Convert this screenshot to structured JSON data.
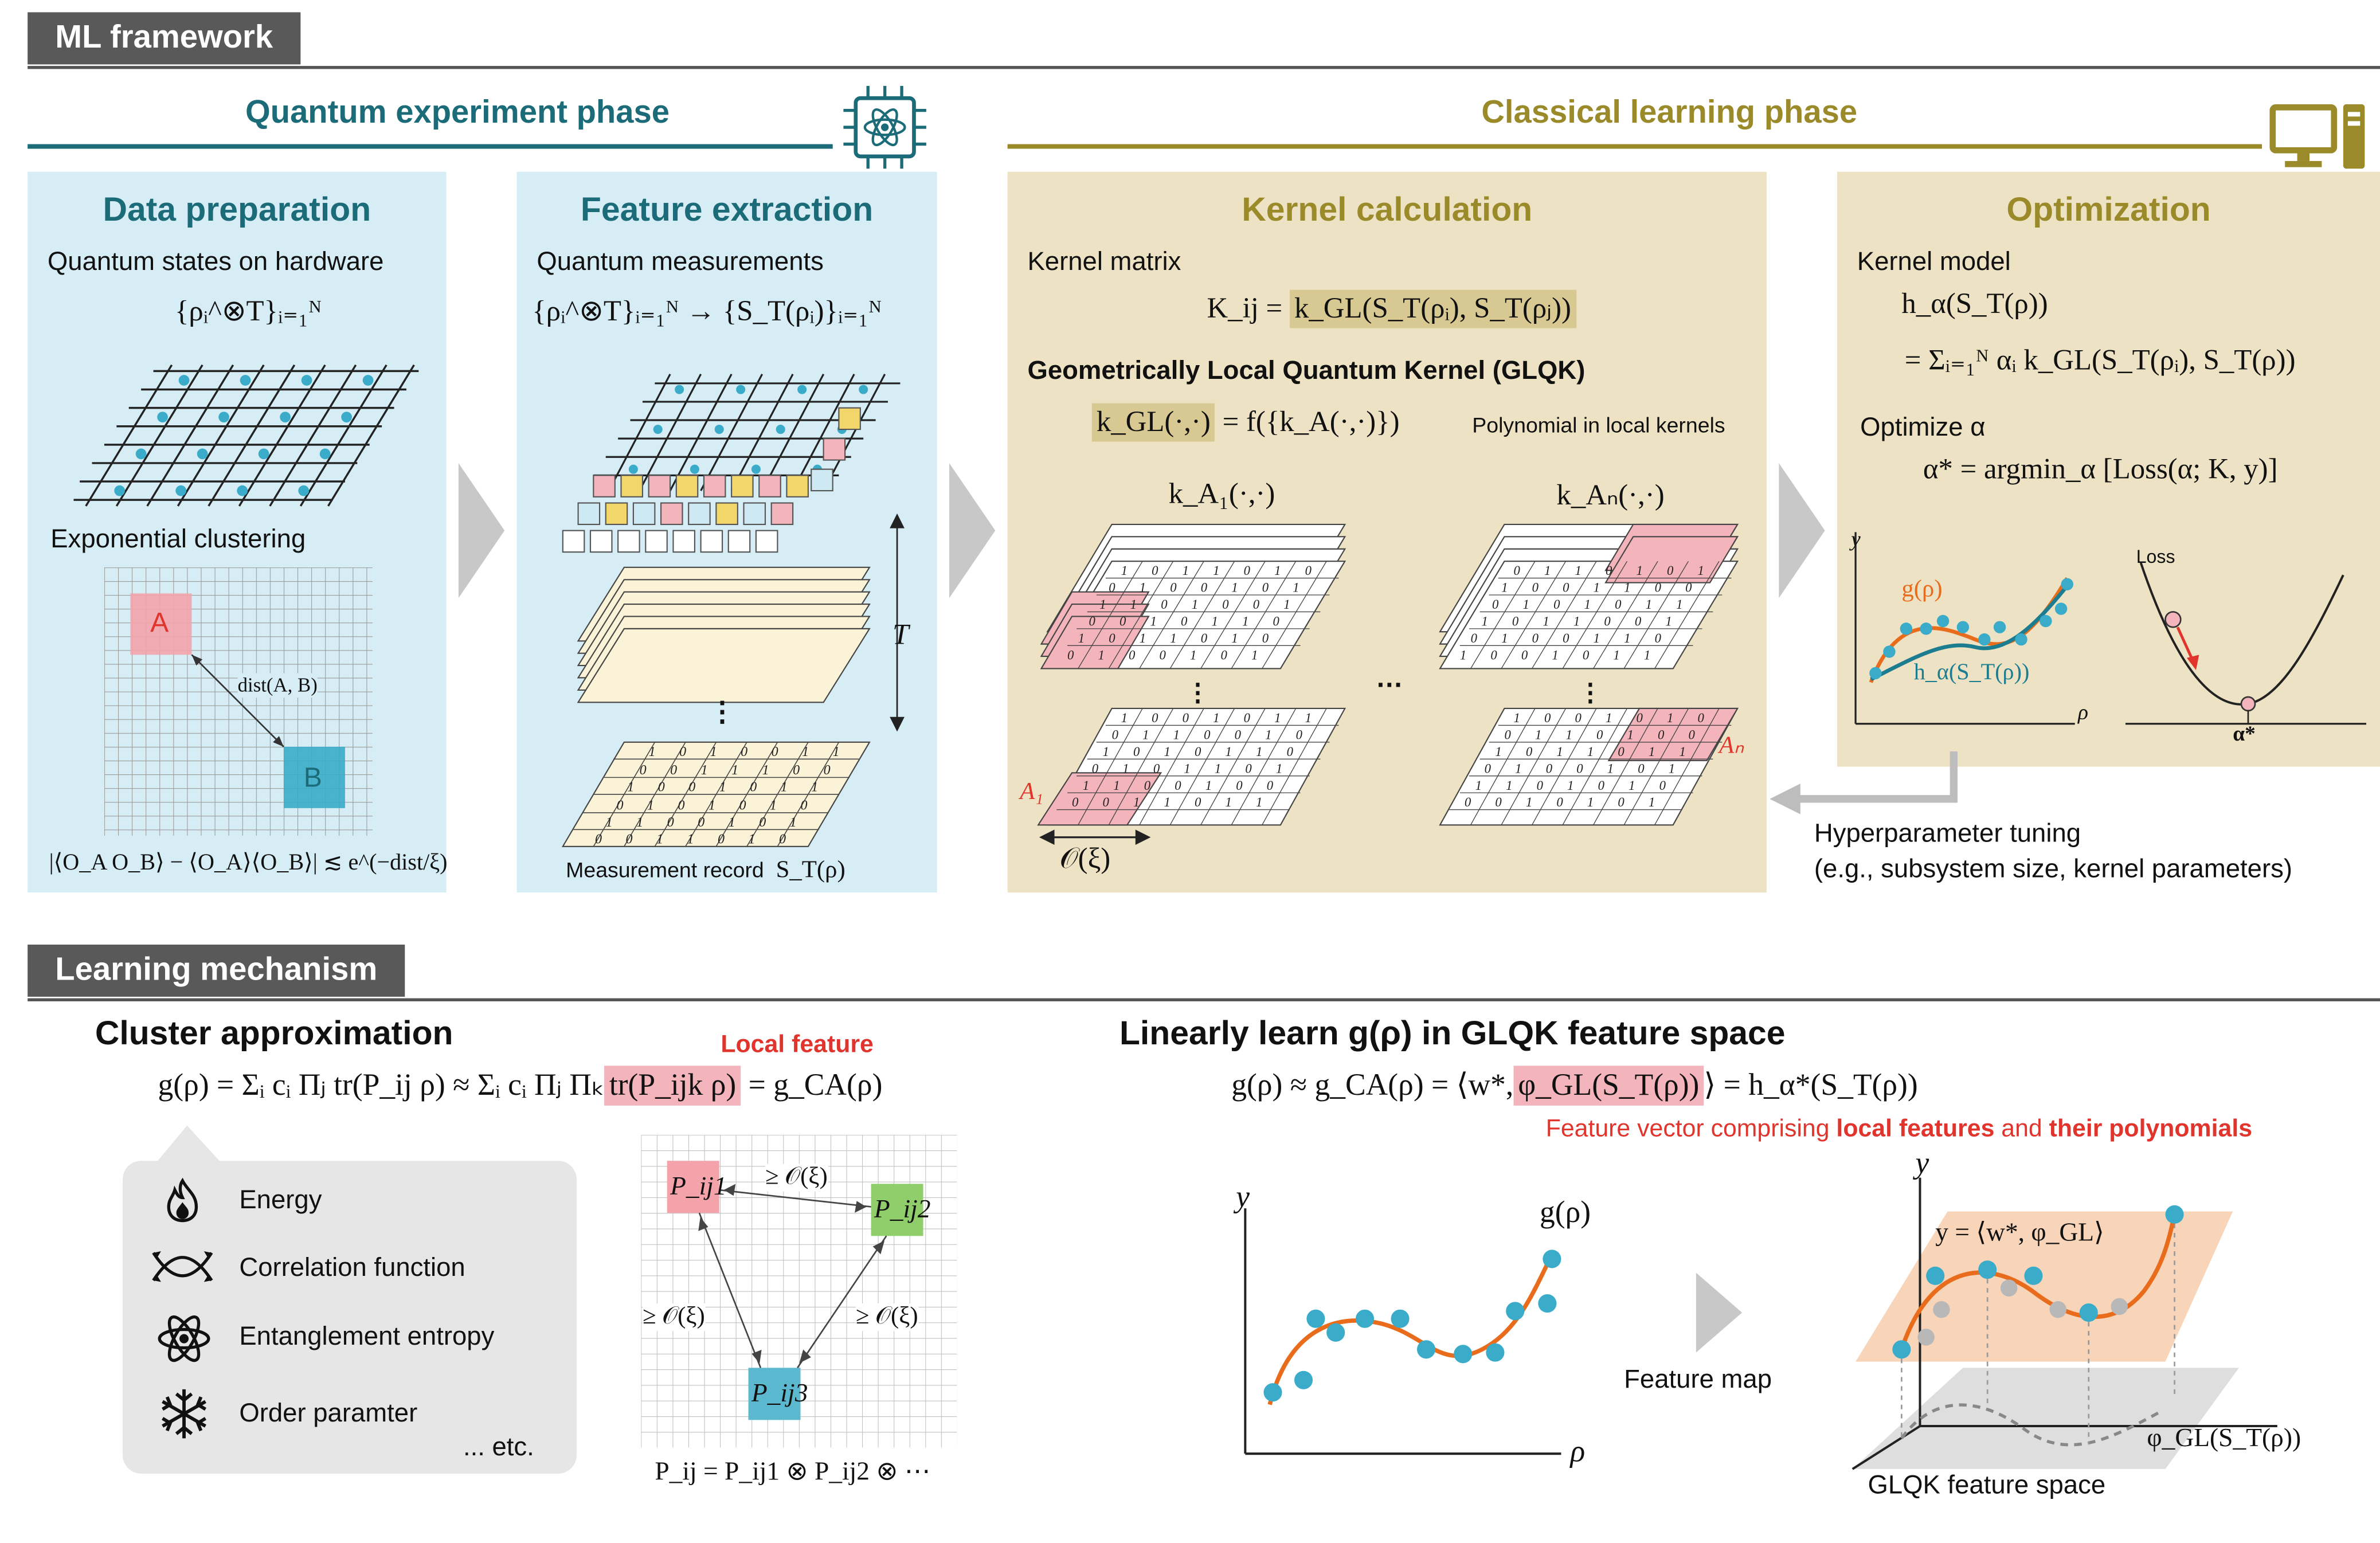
{
  "headers": {
    "ml_framework": "ML framework",
    "learning_mechanism": "Learning mechanism"
  },
  "phases": {
    "quantum": "Quantum experiment phase",
    "classical": "Classical learning phase"
  },
  "data_prep": {
    "title": "Data preparation",
    "subtitle": "Quantum states on hardware",
    "formula": "{ρᵢ^⊗T}ᵢ₌₁ᴺ",
    "clustering": "Exponential clustering",
    "box_a": "A",
    "box_b": "B",
    "dist": "dist(A, B)",
    "bound": "|⟨O_A O_B⟩ − ⟨O_A⟩⟨O_B⟩| ≲ e^(−dist/ξ)"
  },
  "feature": {
    "title": "Feature extraction",
    "subtitle": "Quantum measurements",
    "formula": "{ρᵢ^⊗T}ᵢ₌₁ᴺ → {S_T(ρᵢ)}ᵢ₌₁ᴺ",
    "t_label": "T",
    "record": "Measurement record",
    "record_math": "S_T(ρ)",
    "dots": "⋮"
  },
  "kernel": {
    "title": "Kernel calculation",
    "matrix_label": "Kernel matrix",
    "matrix_lhs": "K_ij =",
    "matrix_rhs": "k_GL(S_T(ρᵢ), S_T(ρⱼ))",
    "glqk_title": "Geometrically Local Quantum Kernel (GLQK)",
    "glqk_lhs": "k_GL(·,·)",
    "glqk_rhs": "= f({k_A(·,·)})",
    "glqk_note": "Polynomial in local kernels",
    "k1": "k_A₁(·,·)",
    "kn": "k_Aₙ(·,·)",
    "a1": "A₁",
    "an": "Aₙ",
    "xi": "𝒪(ξ)",
    "hdots": "…",
    "vdots": "⋮"
  },
  "optimization": {
    "title": "Optimization",
    "model_label": "Kernel model",
    "model_l1": "h_α(S_T(ρ))",
    "model_l2": "= Σᵢ₌₁ᴺ αᵢ k_GL(S_T(ρᵢ), S_T(ρ))",
    "opt_label": "Optimize α",
    "opt_formula": "α* = argmin_α [Loss(α; K, y)]",
    "g": "g(ρ)",
    "h": "h_α(S_T(ρ))",
    "y": "y",
    "rho": "ρ",
    "loss": "Loss",
    "astar": "α*"
  },
  "hyper": {
    "line1": "Hyperparameter tuning",
    "line2": "(e.g., subsystem size, kernel parameters)"
  },
  "cluster": {
    "title": "Cluster approximation",
    "local_feature": "Local feature",
    "eq_left": "g(ρ) = Σᵢ cᵢ Πⱼ tr(P_ij ρ) ≈ Σᵢ cᵢ Πⱼ Πₖ",
    "eq_hl": "tr(P_ijk ρ)",
    "eq_right": "= g_CA(ρ)",
    "items": [
      "Energy",
      "Correlation function",
      "Entanglement entropy",
      "Order paramter"
    ],
    "etc": "... etc.",
    "p1": "P_ij1",
    "p2": "P_ij2",
    "p3": "P_ij3",
    "dist1": "≥ 𝒪(ξ)",
    "dist2": "≥ 𝒪(ξ)",
    "dist3": "≥ 𝒪(ξ)",
    "tensor": "P_ij = P_ij1 ⊗ P_ij2 ⊗ ⋯"
  },
  "linear": {
    "title": "Linearly learn g(ρ) in GLQK feature space",
    "eq_left": "g(ρ) ≈ g_CA(ρ) = ⟨w*,",
    "eq_hl": "φ_GL(S_T(ρ))",
    "eq_right": "⟩ = h_α*(S_T(ρ))",
    "note_a": "Feature vector comprising ",
    "note_b": "local features",
    "note_c": " and ",
    "note_d": "their polynomials",
    "y": "y",
    "rho": "ρ",
    "g": "g(ρ)",
    "feature_map": "Feature map",
    "plane_eq": "y = ⟨w*, φ_GL⟩",
    "phi": "φ_GL(S_T(ρ))",
    "space": "GLQK feature space"
  },
  "colors": {
    "blue_panel": "#d6edf5",
    "yellow_panel": "#ede3c4",
    "teal": "#1c6b78",
    "olive": "#9a8a2a",
    "red": "#e0342c",
    "pink": "#f4b4bc",
    "cyan": "#3aabc8",
    "orange": "#e86c1c"
  }
}
